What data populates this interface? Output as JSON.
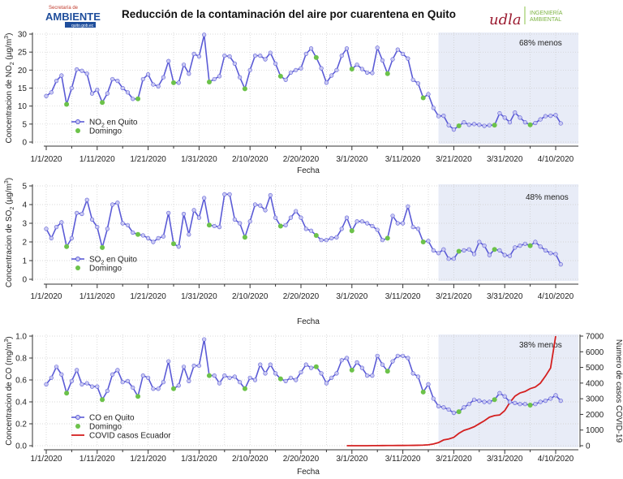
{
  "header": {
    "title": "Reducción de la contaminación del aire por cuarentena en Quito",
    "logo_left": {
      "small": "Secretaría de",
      "big": "AMBIENTE",
      "tag": "quito.gob.ec"
    },
    "logo_right": {
      "mark": "udla",
      "line1": "INGENIERÍA",
      "line2": "AMBIENTAL"
    }
  },
  "colors": {
    "line": "#5b5bd6",
    "marker_fill": "#c9c9f2",
    "sunday": "#6cc24a",
    "covid": "#d42020",
    "shade": "#e8ecf7",
    "grid": "#cccccc"
  },
  "chart_data": [
    {
      "type": "line",
      "title": "",
      "xlabel": "Fecha",
      "ylabel": {
        "pre": "Concentracion de NO",
        "sub": "2",
        "mid": " (µg/m",
        "sup": "3",
        "post": ")"
      },
      "x_start": "1/1/2020",
      "x_tick_labels": [
        "1/1/2020",
        "1/11/2020",
        "1/21/2020",
        "1/31/2020",
        "2/10/2020",
        "2/20/2020",
        "3/1/2020",
        "3/11/2020",
        "3/21/2020",
        "3/31/2020",
        "4/10/2020"
      ],
      "ylim": [
        0,
        30
      ],
      "yticks": [
        "0",
        "5",
        "10",
        "15",
        "20",
        "25",
        "30"
      ],
      "legend": {
        "series": "NO",
        "series_sub": "2",
        "series_post": " en Quito",
        "sunday": "Domingo",
        "placement": "lower-left"
      },
      "annotation": "68% menos",
      "quarantine_start_day": 77,
      "values": [
        12.8,
        13.8,
        17,
        18.5,
        10.5,
        15,
        20.2,
        19.8,
        19,
        13.5,
        14.5,
        11,
        13.5,
        17.5,
        17,
        15,
        13.8,
        12,
        12,
        17.5,
        18.8,
        16,
        15.5,
        18,
        22.5,
        16.5,
        16.5,
        21.5,
        19,
        24.5,
        23.8,
        29.8,
        16.7,
        17.5,
        18.3,
        24,
        23.8,
        21.8,
        18,
        14.8,
        20,
        24,
        24,
        23,
        24.8,
        21.8,
        18.3,
        17.3,
        19.3,
        20,
        20.5,
        24.5,
        26,
        23.5,
        20.5,
        16.5,
        18.5,
        20,
        24,
        26,
        20.3,
        21.5,
        20.3,
        19.3,
        19.2,
        26.2,
        22.7,
        19,
        23,
        25.7,
        24.5,
        23.2,
        17.3,
        16.3,
        12.3,
        13.3,
        9.5,
        7.2,
        7.3,
        4.7,
        3.5,
        4.5,
        5.5,
        4.8,
        5,
        4.8,
        4.5,
        4.7,
        4.7,
        8,
        6.8,
        5.5,
        8.2,
        6.8,
        5.5,
        4.8,
        5.3,
        6.3,
        7.2,
        7.3,
        7.5,
        5.2
      ]
    },
    {
      "type": "line",
      "title": "",
      "xlabel": "Fecha",
      "ylabel": {
        "pre": "Concentracion de SO",
        "sub": "2",
        "mid": " (µg/m",
        "sup": "3",
        "post": ")"
      },
      "x_start": "1/1/2020",
      "x_tick_labels": [
        "1/1/2020",
        "1/11/2020",
        "1/21/2020",
        "1/31/2020",
        "2/10/2020",
        "2/20/2020",
        "3/1/2020",
        "3/11/2020",
        "3/21/2020",
        "3/31/2020",
        "4/10/2020"
      ],
      "ylim": [
        0,
        5
      ],
      "yticks": [
        "0",
        "1",
        "2",
        "3",
        "4",
        "5"
      ],
      "legend": {
        "series": "SO",
        "series_sub": "2",
        "series_post": " en Quito",
        "sunday": "Domingo",
        "placement": "lower-left"
      },
      "annotation": "48% menos",
      "quarantine_start_day": 77,
      "values": [
        2.7,
        2.2,
        2.8,
        3.05,
        1.75,
        2.2,
        3.55,
        3.5,
        4.25,
        3.2,
        2.8,
        1.7,
        2.7,
        4.0,
        4.1,
        3.0,
        2.9,
        2.5,
        2.4,
        2.35,
        2.2,
        2.0,
        2.2,
        2.3,
        3.55,
        1.9,
        1.75,
        3.5,
        2.4,
        3.7,
        3.3,
        4.35,
        2.9,
        2.85,
        2.8,
        4.55,
        4.55,
        3.2,
        3.0,
        2.25,
        3.1,
        4.0,
        3.95,
        3.7,
        4.5,
        3.3,
        2.85,
        2.9,
        3.3,
        3.65,
        3.3,
        2.7,
        2.6,
        2.35,
        2.1,
        2.1,
        2.2,
        2.25,
        2.7,
        3.3,
        2.6,
        3.1,
        3.1,
        3.0,
        2.85,
        2.65,
        2.1,
        2.2,
        3.4,
        3.0,
        3.0,
        3.9,
        2.8,
        2.7,
        2.0,
        2.05,
        1.55,
        1.4,
        1.6,
        1.1,
        1.1,
        1.5,
        1.55,
        1.6,
        1.35,
        2.0,
        1.8,
        1.3,
        1.6,
        1.55,
        1.3,
        1.25,
        1.7,
        1.8,
        1.9,
        1.8,
        2.0,
        1.75,
        1.55,
        1.4,
        1.35,
        0.8
      ]
    },
    {
      "type": "line",
      "title": "",
      "xlabel": "Fecha",
      "ylabel": {
        "pre": "Concentracion de CO (mg/m",
        "sub": "",
        "mid": "",
        "sup": "3",
        "post": ")"
      },
      "y2label": "Numero de casos COVID-19",
      "x_start": "1/1/2020",
      "x_tick_labels": [
        "1/1/2020",
        "1/11/2020",
        "1/21/2020",
        "1/31/2020",
        "2/10/2020",
        "2/20/2020",
        "3/1/2020",
        "3/11/2020",
        "3/21/2020",
        "3/31/2020",
        "4/10/2020"
      ],
      "ylim": [
        0,
        1.0
      ],
      "yticks": [
        "0.0",
        "0.2",
        "0.4",
        "0.6",
        "0.8",
        "1.0"
      ],
      "y2lim": [
        0,
        7000
      ],
      "y2ticks": [
        "0",
        "1000",
        "2000",
        "3000",
        "4000",
        "5000",
        "6000",
        "7000"
      ],
      "legend": {
        "series": "CO en Quito",
        "sunday": "Domingo",
        "covid": "COVID casos Ecuador",
        "placement": "lower-left"
      },
      "annotation": "38% menos",
      "quarantine_start_day": 77,
      "values": [
        0.56,
        0.62,
        0.72,
        0.65,
        0.48,
        0.59,
        0.69,
        0.56,
        0.57,
        0.54,
        0.54,
        0.42,
        0.5,
        0.65,
        0.69,
        0.58,
        0.59,
        0.53,
        0.45,
        0.64,
        0.62,
        0.52,
        0.52,
        0.58,
        0.77,
        0.52,
        0.55,
        0.72,
        0.59,
        0.73,
        0.73,
        0.97,
        0.64,
        0.64,
        0.57,
        0.64,
        0.62,
        0.63,
        0.58,
        0.52,
        0.62,
        0.6,
        0.74,
        0.66,
        0.74,
        0.66,
        0.61,
        0.59,
        0.62,
        0.6,
        0.67,
        0.74,
        0.71,
        0.72,
        0.66,
        0.57,
        0.62,
        0.66,
        0.78,
        0.8,
        0.69,
        0.76,
        0.71,
        0.64,
        0.64,
        0.82,
        0.74,
        0.68,
        0.77,
        0.82,
        0.82,
        0.8,
        0.66,
        0.63,
        0.49,
        0.56,
        0.43,
        0.36,
        0.35,
        0.33,
        0.3,
        0.31,
        0.35,
        0.38,
        0.42,
        0.41,
        0.4,
        0.4,
        0.42,
        0.48,
        0.45,
        0.4,
        0.39,
        0.38,
        0.38,
        0.37,
        0.38,
        0.4,
        0.41,
        0.43,
        0.46,
        0.41
      ],
      "covid_start_day": 59,
      "covid_cases": [
        0,
        0,
        0,
        0,
        1,
        5,
        7,
        10,
        13,
        14,
        15,
        17,
        19,
        23,
        28,
        37,
        58,
        111,
        199,
        367,
        426,
        532,
        789,
        981,
        1082,
        1211,
        1403,
        1595,
        1823,
        1924,
        1962,
        2240,
        2758,
        3163,
        3368,
        3465,
        3646,
        3747,
        3995,
        4450,
        4965,
        7161
      ]
    }
  ]
}
